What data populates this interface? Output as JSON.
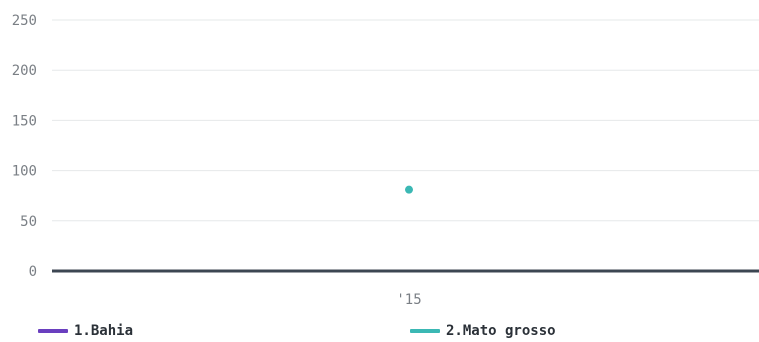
{
  "chart_data": {
    "type": "line",
    "categories": [
      "'15"
    ],
    "y_ticks": [
      "0",
      "50",
      "100",
      "150",
      "200",
      "250"
    ],
    "ylim": [
      0,
      250
    ],
    "grid": true,
    "legend_position": "bottom",
    "series": [
      {
        "name": "1.Bahia",
        "values": [
          null
        ],
        "color": "#6a3fbf"
      },
      {
        "name": "2.Mato grosso",
        "values": [
          81
        ],
        "color": "#3bb8b4"
      }
    ]
  }
}
